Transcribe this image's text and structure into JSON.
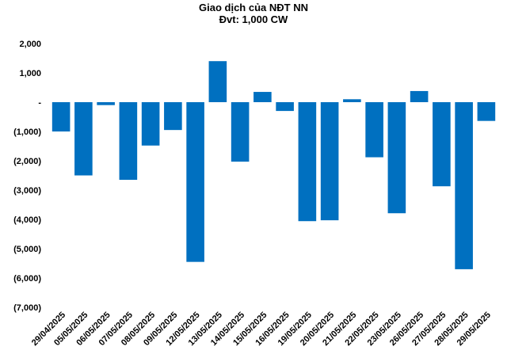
{
  "chart_data": {
    "type": "bar",
    "title": "Giao dịch của NĐT NN",
    "subtitle": "Đvt: 1,000 CW",
    "xlabel": "",
    "ylabel": "",
    "ylim": [
      -7000,
      2000
    ],
    "yticks": [
      2000,
      1000,
      0,
      -1000,
      -2000,
      -3000,
      -4000,
      -5000,
      -6000,
      -7000
    ],
    "ytick_labels": [
      "2,000",
      "1,000",
      "-",
      "(1,000)",
      "(2,000)",
      "(3,000)",
      "(4,000)",
      "(5,000)",
      "(6,000)",
      "(7,000)"
    ],
    "grid": false,
    "legend": "none",
    "bar_color": "#0070C0",
    "categories": [
      "29/04/2025",
      "05/05/2025",
      "06/05/2025",
      "07/05/2025",
      "08/05/2025",
      "09/05/2025",
      "12/05/2025",
      "13/05/2025",
      "14/05/2025",
      "15/05/2025",
      "16/05/2025",
      "19/05/2025",
      "20/05/2025",
      "21/05/2025",
      "22/05/2025",
      "23/05/2025",
      "26/05/2025",
      "27/05/2025",
      "28/05/2025",
      "29/05/2025"
    ],
    "values": [
      -1000,
      -2500,
      -100,
      -2650,
      -1480,
      -950,
      -5450,
      1400,
      -2030,
      350,
      -300,
      -4060,
      -4030,
      100,
      -1880,
      -3790,
      380,
      -2870,
      -5700,
      -640
    ]
  }
}
